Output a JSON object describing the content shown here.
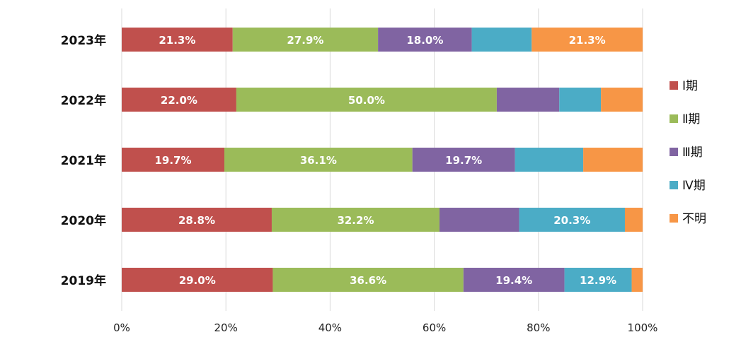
{
  "chart_data": {
    "type": "bar",
    "orientation": "horizontal",
    "stacked": true,
    "percent": true,
    "categories": [
      "2023年",
      "2022年",
      "2021年",
      "2020年",
      "2019年"
    ],
    "series": [
      {
        "name": "Ⅰ期",
        "color": "#C0504D",
        "values": [
          21.3,
          22.0,
          19.7,
          28.8,
          29.0
        ],
        "labels": [
          "21.3%",
          "22.0%",
          "19.7%",
          "28.8%",
          "29.0%"
        ]
      },
      {
        "name": "Ⅱ期",
        "color": "#9BBB59",
        "values": [
          27.9,
          50.0,
          36.1,
          32.2,
          36.6
        ],
        "labels": [
          "27.9%",
          "50.0%",
          "36.1%",
          "32.2%",
          "36.6%"
        ]
      },
      {
        "name": "Ⅲ期",
        "color": "#8064A2",
        "values": [
          18.0,
          12.0,
          19.7,
          15.3,
          19.4
        ],
        "labels": [
          "18.0%",
          "",
          "19.7%",
          "",
          "19.4%"
        ]
      },
      {
        "name": "Ⅳ期",
        "color": "#4BACC6",
        "values": [
          11.5,
          8.0,
          13.1,
          20.3,
          12.9
        ],
        "labels": [
          "",
          "",
          "",
          "20.3%",
          "12.9%"
        ]
      },
      {
        "name": "不明",
        "color": "#F79646",
        "values": [
          21.3,
          8.0,
          11.4,
          3.4,
          2.1
        ],
        "labels": [
          "21.3%",
          "",
          "",
          "",
          ""
        ]
      }
    ],
    "xlim": [
      0,
      100
    ],
    "xticks": [
      "0%",
      "20%",
      "40%",
      "60%",
      "80%",
      "100%"
    ],
    "grid": true,
    "legend_position": "right"
  }
}
